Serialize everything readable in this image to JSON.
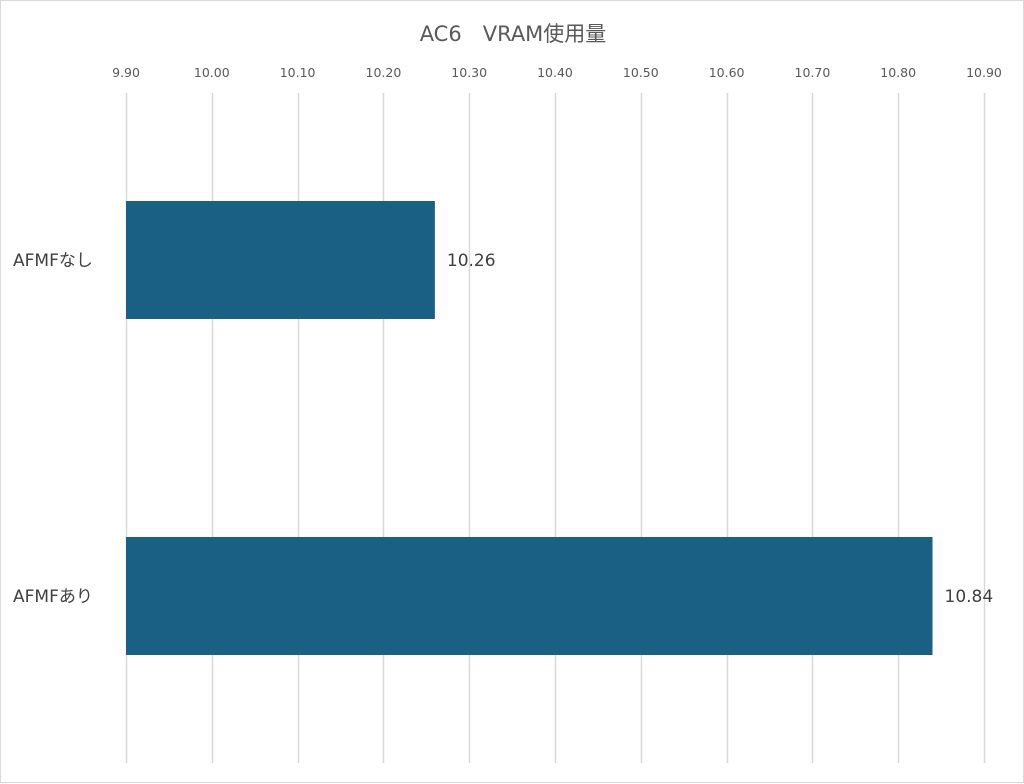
{
  "chart_data": {
    "type": "bar",
    "orientation": "horizontal",
    "title": "AC6　VRAM使用量",
    "categories": [
      "AFMFなし",
      "AFMFあり"
    ],
    "values": [
      10.26,
      10.84
    ],
    "value_labels": [
      "10.26",
      "10.84"
    ],
    "xlim": [
      9.9,
      10.9
    ],
    "ticks": [
      9.9,
      10.0,
      10.1,
      10.2,
      10.3,
      10.4,
      10.5,
      10.6,
      10.7,
      10.8,
      10.9
    ],
    "tick_labels": [
      "9.90",
      "10.00",
      "10.10",
      "10.20",
      "10.30",
      "10.40",
      "10.50",
      "10.60",
      "10.70",
      "10.80",
      "10.90"
    ],
    "axis_position": "top",
    "grid": true,
    "legend": false,
    "xlabel": "",
    "ylabel": ""
  },
  "colors": {
    "bar": "#1a6085",
    "grid": "#d9d9d9",
    "text": "#595959",
    "label": "#404040",
    "border": "#d9d9d9"
  }
}
